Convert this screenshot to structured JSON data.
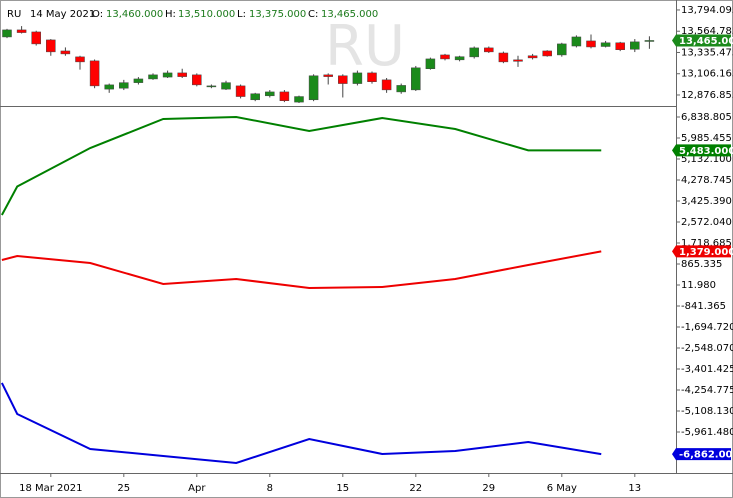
{
  "header": {
    "symbol": "RU",
    "date": "14 May 2021",
    "fields": [
      {
        "label": "O:",
        "value": "13,460.000"
      },
      {
        "label": "H:",
        "value": "13,510.000"
      },
      {
        "label": "L:",
        "value": "13,375.000"
      },
      {
        "label": "C:",
        "value": "13,465.000"
      }
    ]
  },
  "watermark": "RU",
  "chart_data": [
    {
      "type": "candlestick",
      "categories": [
        null,
        null,
        null,
        "18 Mar 2021",
        null,
        null,
        null,
        null,
        "25",
        null,
        null,
        null,
        null,
        "Apr",
        null,
        null,
        null,
        null,
        "8",
        null,
        null,
        null,
        null,
        "15",
        null,
        null,
        null,
        null,
        "22",
        null,
        null,
        null,
        null,
        "29",
        null,
        null,
        null,
        null,
        "6 May",
        null,
        null,
        null,
        null,
        "13",
        null
      ],
      "open": [
        13503,
        13579,
        13557,
        13471,
        13352,
        13288,
        13245,
        12940,
        12950,
        13010,
        13050,
        13070,
        13115,
        13094,
        12965,
        12940,
        12975,
        12825,
        12868,
        12910,
        12800,
        12825,
        13094,
        13084,
        13000,
        13115,
        13040,
        12910,
        12932,
        13160,
        13309,
        13256,
        13288,
        13385,
        13330,
        13256,
        13300,
        13352,
        13309,
        13405,
        13460,
        13400,
        13440,
        13370,
        13460
      ],
      "high": [
        13590,
        13620,
        13570,
        13480,
        13390,
        13300,
        13260,
        13000,
        13040,
        13070,
        13110,
        13140,
        13160,
        13110,
        12990,
        13030,
        12990,
        12900,
        12930,
        12930,
        12870,
        13100,
        13110,
        13100,
        13140,
        13130,
        13060,
        13000,
        13190,
        13280,
        13320,
        13300,
        13400,
        13400,
        13345,
        13300,
        13320,
        13360,
        13440,
        13520,
        13530,
        13460,
        13450,
        13480,
        13510
      ],
      "low": [
        13490,
        13540,
        13410,
        13300,
        13300,
        13150,
        12950,
        12900,
        12930,
        12990,
        13040,
        13060,
        13060,
        12970,
        12950,
        12930,
        12840,
        12810,
        12850,
        12800,
        12790,
        12810,
        12990,
        12850,
        12980,
        13000,
        12900,
        12890,
        12920,
        13150,
        13250,
        13240,
        13270,
        13330,
        13220,
        13180,
        13260,
        13290,
        13290,
        13390,
        13380,
        13390,
        13350,
        13340,
        13375
      ],
      "close": [
        13579,
        13550,
        13428,
        13342,
        13320,
        13234,
        12975,
        12986,
        13010,
        13050,
        13094,
        13115,
        13075,
        12986,
        12975,
        13010,
        12860,
        12890,
        12910,
        12815,
        12860,
        13084,
        13075,
        13000,
        13115,
        13020,
        12932,
        12980,
        13170,
        13266,
        13266,
        13290,
        13385,
        13342,
        13234,
        13240,
        13277,
        13298,
        13428,
        13503,
        13395,
        13440,
        13365,
        13450,
        13465
      ],
      "up_color": "#1b8a1b",
      "down_color": "#ff0000",
      "ylim": [
        12758,
        13880
      ],
      "yticks": [
        {
          "value": 13794.095,
          "label": "13,794.095"
        },
        {
          "value": 13564.785,
          "label": "13,564.785"
        },
        {
          "value": 13335.475,
          "label": "13,335.475"
        },
        {
          "value": 13106.165,
          "label": "13,106.165"
        },
        {
          "value": 12876.855,
          "label": "12,876.855"
        }
      ],
      "last_value": 13465,
      "last_label": "13,465.000",
      "last_color": "#1b8a1b"
    },
    {
      "type": "line",
      "x": [
        -0.35,
        0.7,
        5.7,
        10.7,
        15.7,
        20.7,
        25.7,
        30.7,
        35.7,
        40.7
      ],
      "xlim": [
        -0.479,
        45.82
      ],
      "ylim": [
        -7628,
        7205
      ],
      "yticks": [
        {
          "value": 6838.805,
          "label": "6,838.805"
        },
        {
          "value": 5985.455,
          "label": "5,985.455"
        },
        {
          "value": 5132.1,
          "label": "5,132.100"
        },
        {
          "value": 4278.745,
          "label": "4,278.745"
        },
        {
          "value": 3425.39,
          "label": "3,425.390"
        },
        {
          "value": 2572.04,
          "label": "2,572.040"
        },
        {
          "value": 1718.685,
          "label": "1,718.685"
        },
        {
          "value": 865.335,
          "label": "865.335"
        },
        {
          "value": 11.98,
          "label": "11.980"
        },
        {
          "value": -841.365,
          "label": "-841.365"
        },
        {
          "value": -1694.72,
          "label": "-1,694.720"
        },
        {
          "value": -2548.07,
          "label": "-2,548.070"
        },
        {
          "value": -3401.425,
          "label": "-3,401.425"
        },
        {
          "value": -4254.775,
          "label": "-4,254.775"
        },
        {
          "value": -5108.13,
          "label": "-5,108.130"
        },
        {
          "value": -5961.48,
          "label": "-5,961.480"
        }
      ],
      "series": [
        {
          "color": "#008000",
          "values": [
            2856,
            4014,
            5579,
            6758,
            6839,
            6270,
            6798,
            6351,
            5483,
            5483
          ],
          "last_label": "5,483.000"
        },
        {
          "color": "#ee0000",
          "values": [
            1028,
            1190,
            906,
            53,
            256,
            -110,
            -69,
            256,
            824,
            1379
          ],
          "last_label": "1,379.000"
        },
        {
          "color": "#0000dd",
          "values": [
            -3970,
            -5230,
            -6652,
            -6937,
            -7221,
            -6246,
            -6856,
            -6734,
            -6368,
            -6862
          ],
          "last_label": "-6,862.000"
        }
      ]
    }
  ]
}
